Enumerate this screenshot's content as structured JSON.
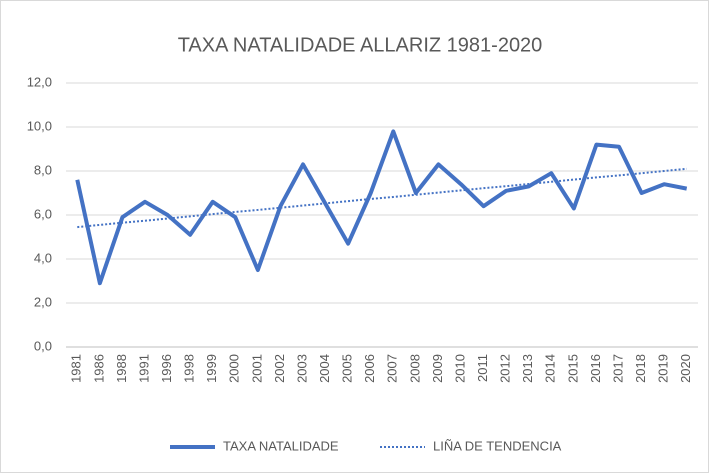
{
  "chart_data": {
    "type": "line",
    "title": "TAXA NATALIDADE ALLARIZ 1981-2020",
    "categories": [
      "1981",
      "1986",
      "1988",
      "1991",
      "1996",
      "1998",
      "1999",
      "2000",
      "2001",
      "2002",
      "2003",
      "2004",
      "2005",
      "2006",
      "2007",
      "2008",
      "2009",
      "2010",
      "2011",
      "2012",
      "2013",
      "2014",
      "2015",
      "2016",
      "2017",
      "2018",
      "2019",
      "2020"
    ],
    "series": [
      {
        "name": "TAXA NATALIDADE",
        "color": "#4472c4",
        "style": "solid",
        "values": [
          7.6,
          2.9,
          5.9,
          6.6,
          6.0,
          5.1,
          6.6,
          5.9,
          3.5,
          6.4,
          8.3,
          6.5,
          4.7,
          7.0,
          9.8,
          7.0,
          8.3,
          7.4,
          6.4,
          7.1,
          7.3,
          7.9,
          6.3,
          9.2,
          9.1,
          7.0,
          7.4,
          7.2
        ]
      },
      {
        "name": "LIÑA DE TENDENCIA",
        "color": "#4472c4",
        "style": "dotted",
        "values": [
          5.45,
          5.55,
          5.65,
          5.74,
          5.84,
          5.94,
          6.04,
          6.14,
          6.23,
          6.33,
          6.43,
          6.53,
          6.63,
          6.73,
          6.82,
          6.92,
          7.02,
          7.12,
          7.22,
          7.31,
          7.41,
          7.51,
          7.61,
          7.71,
          7.8,
          7.9,
          8.0,
          8.1
        ]
      }
    ],
    "ylim": [
      0,
      12
    ],
    "yticks": [
      {
        "value": 0,
        "label": "0,0"
      },
      {
        "value": 2,
        "label": "2,0"
      },
      {
        "value": 4,
        "label": "4,0"
      },
      {
        "value": 6,
        "label": "6,0"
      },
      {
        "value": 8,
        "label": "8,0"
      },
      {
        "value": 10,
        "label": "10,0"
      },
      {
        "value": 12,
        "label": "12,0"
      }
    ],
    "grid": true,
    "legend": "bottom"
  }
}
